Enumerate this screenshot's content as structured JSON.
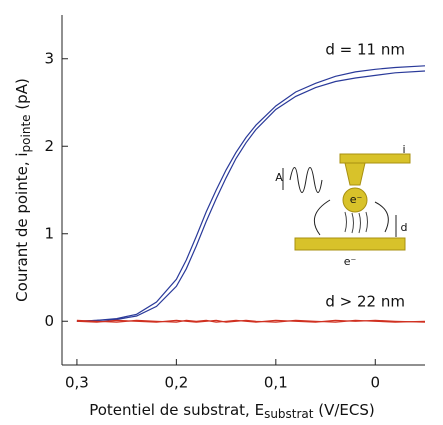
{
  "chart_data": {
    "type": "line",
    "x_label_parts": [
      "Potentiel de substrat, E",
      "substrat",
      " (V/ECS)"
    ],
    "y_label_parts": [
      "Courant de pointe, i",
      "pointe",
      " (pA)"
    ],
    "annotations": [
      "d = 11 nm",
      "d > 22 nm"
    ],
    "inset_labels": [
      "A",
      "i",
      "e⁻",
      "d",
      "e⁻"
    ],
    "x": [
      0.3,
      0.28,
      0.26,
      0.24,
      0.22,
      0.2,
      0.19,
      0.18,
      0.17,
      0.16,
      0.15,
      0.14,
      0.13,
      0.12,
      0.1,
      0.08,
      0.06,
      0.04,
      0.02,
      0,
      -0.02,
      -0.05
    ],
    "series": [
      {
        "color": "#2a3a9a",
        "values": [
          0,
          0.01,
          0.03,
          0.08,
          0.22,
          0.48,
          0.7,
          0.97,
          1.25,
          1.5,
          1.73,
          1.93,
          2.1,
          2.24,
          2.46,
          2.62,
          2.72,
          2.8,
          2.85,
          2.88,
          2.9,
          2.92
        ]
      },
      {
        "color": "#2a3a9a",
        "values": [
          0,
          0.01,
          0.02,
          0.06,
          0.17,
          0.4,
          0.6,
          0.86,
          1.14,
          1.4,
          1.64,
          1.86,
          2.04,
          2.19,
          2.42,
          2.57,
          2.67,
          2.74,
          2.78,
          2.81,
          2.84,
          2.86
        ]
      },
      {
        "color": "#d03020",
        "values": [
          0.01,
          0,
          -0.01,
          0.01,
          0,
          -0.01,
          0.01,
          0,
          0.01,
          -0.01,
          0,
          0.01,
          0,
          -0.01,
          0.01,
          0,
          -0.01,
          0.01,
          0,
          0.01,
          0,
          -0.01
        ]
      },
      {
        "color": "#d03020",
        "values": [
          0,
          -0.01,
          0.01,
          0,
          -0.01,
          0.01,
          0,
          -0.01,
          0,
          0.01,
          -0.01,
          0,
          0.01,
          0,
          -0.01,
          0.01,
          0,
          -0.01,
          0.01,
          0,
          -0.01,
          0
        ]
      }
    ],
    "xlim": [
      0.315,
      -0.05
    ],
    "ylim": [
      -0.5,
      3.5
    ],
    "xticks": [
      {
        "value": 0.3,
        "label": "0,3"
      },
      {
        "value": 0.2,
        "label": "0,2"
      },
      {
        "value": 0.1,
        "label": "0,1"
      },
      0
    ],
    "yticks": [
      0,
      1,
      2,
      3
    ]
  }
}
